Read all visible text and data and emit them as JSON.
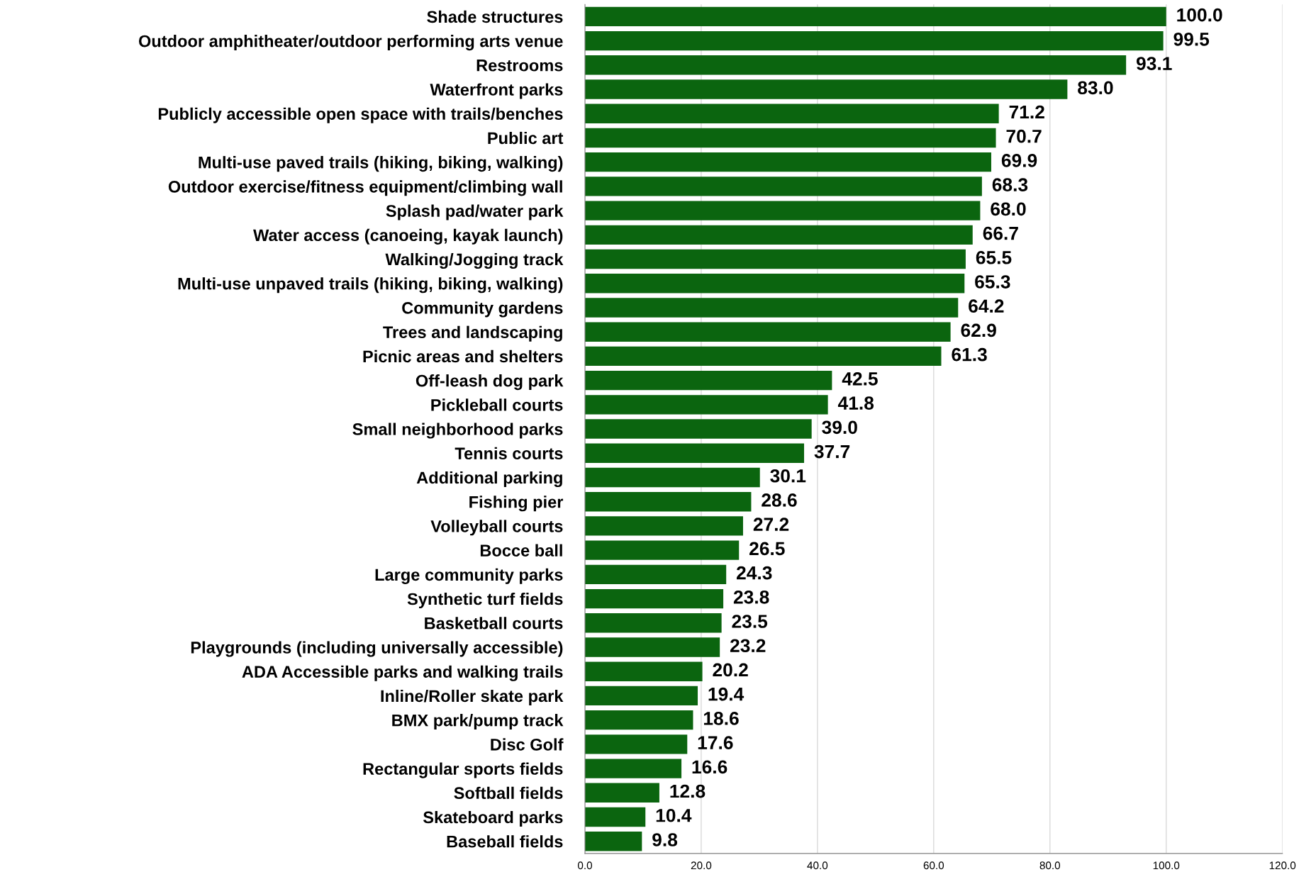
{
  "chart_data": {
    "type": "bar",
    "orientation": "horizontal",
    "color": "#0b650f",
    "categories": [
      "Shade structures",
      "Outdoor amphitheater/outdoor performing arts venue",
      "Restrooms",
      "Waterfront parks",
      "Publicly accessible open space with trails/benches",
      "Public art",
      "Multi-use paved trails (hiking, biking, walking)",
      "Outdoor exercise/fitness equipment/climbing wall",
      "Splash pad/water park",
      "Water access (canoeing, kayak launch)",
      "Walking/Jogging track",
      "Multi-use unpaved trails (hiking, biking, walking)",
      "Community gardens",
      "Trees and landscaping",
      "Picnic areas and shelters",
      "Off-leash dog park",
      "Pickleball courts",
      "Small neighborhood parks",
      "Tennis courts",
      "Additional parking",
      "Fishing pier",
      "Volleyball courts",
      "Bocce ball",
      "Large community parks",
      "Synthetic turf fields",
      "Basketball courts",
      "Playgrounds (including universally accessible)",
      "ADA Accessible parks and walking trails",
      "Inline/Roller skate park",
      "BMX park/pump track",
      "Disc Golf",
      "Rectangular sports fields",
      "Softball fields",
      "Skateboard parks",
      "Baseball fields"
    ],
    "values": [
      100.0,
      99.5,
      93.1,
      83.0,
      71.2,
      70.7,
      69.9,
      68.3,
      68.0,
      66.7,
      65.5,
      65.3,
      64.2,
      62.9,
      61.3,
      42.5,
      41.8,
      39.0,
      37.7,
      30.1,
      28.6,
      27.2,
      26.5,
      24.3,
      23.8,
      23.5,
      23.2,
      20.2,
      19.4,
      18.6,
      17.6,
      16.6,
      12.8,
      10.4,
      9.8
    ],
    "value_labels": [
      "100.0",
      "99.5",
      "93.1",
      "83.0",
      "71.2",
      "70.7",
      "69.9",
      "68.3",
      "68.0",
      "66.7",
      "65.5",
      "65.3",
      "64.2",
      "62.9",
      "61.3",
      "42.5",
      "41.8",
      "39.0",
      "37.7",
      "30.1",
      "28.6",
      "27.2",
      "26.5",
      "24.3",
      "23.8",
      "23.5",
      "23.2",
      "20.2",
      "19.4",
      "18.6",
      "17.6",
      "16.6",
      "12.8",
      "10.4",
      "9.8"
    ],
    "xlim": [
      0,
      120
    ],
    "xticks": [
      {
        "value": 0,
        "label": "0.0"
      },
      {
        "value": 20,
        "label": "20.0"
      },
      {
        "value": 40,
        "label": "40.0"
      },
      {
        "value": 60,
        "label": "60.0"
      },
      {
        "value": 80,
        "label": "80.0"
      },
      {
        "value": 100,
        "label": "100.0"
      },
      {
        "value": 120,
        "label": "120.0"
      }
    ],
    "grid": "x",
    "legend": false
  }
}
